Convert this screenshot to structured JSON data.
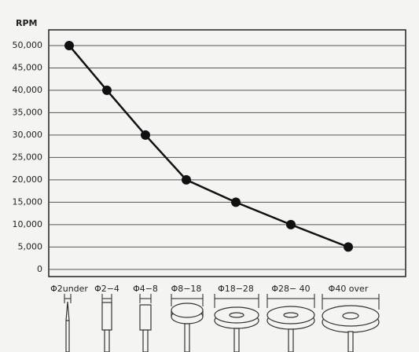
{
  "chart_data": {
    "type": "line",
    "y_label": "RPM",
    "categories": [
      "Φ2under",
      "Φ2−4",
      "Φ4−8",
      "Φ8−18",
      "Φ18−28",
      "Φ28− 40",
      "Φ40 over"
    ],
    "series": [
      {
        "name": "RPM",
        "color": "#111111",
        "values": [
          50000,
          40000,
          30000,
          20000,
          15000,
          10000,
          5000
        ]
      }
    ],
    "ylim": [
      -1600,
      53500
    ],
    "yticks": [
      0,
      {
        "value": 5000,
        "label": "5,000"
      },
      {
        "value": 10000,
        "label": "10,000"
      },
      {
        "value": 15000,
        "label": "15,000"
      },
      {
        "value": 20000,
        "label": "20,000"
      },
      {
        "value": 25000,
        "label": "25,000"
      },
      {
        "value": 30000,
        "label": "30,000"
      },
      {
        "value": 35000,
        "label": "35,000"
      },
      {
        "value": 40000,
        "label": "40,000"
      },
      {
        "value": 45000,
        "label": "45,000"
      },
      {
        "value": 50000,
        "label": "50,000"
      }
    ],
    "grid": true
  }
}
